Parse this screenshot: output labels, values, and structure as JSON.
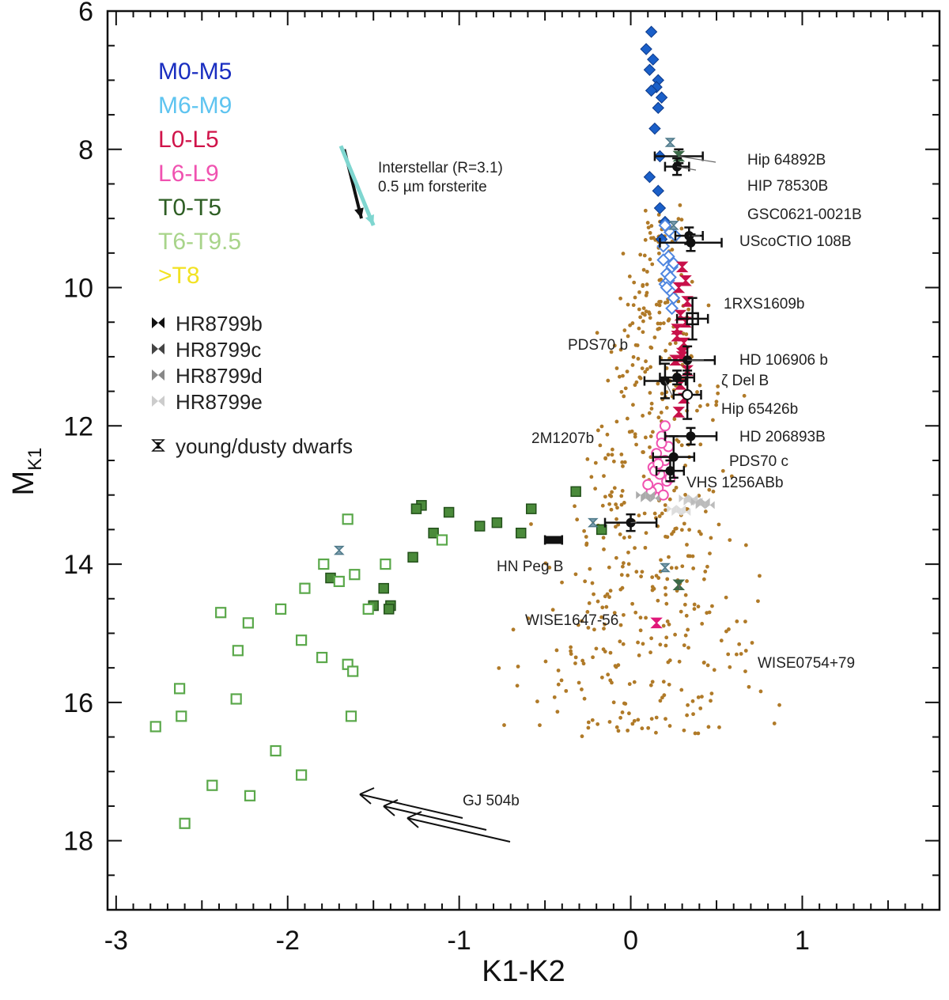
{
  "chart_data": {
    "type": "scatter",
    "xlabel": "K1-K2",
    "ylabel": "M",
    "ylabel_sub": "K1",
    "xlim": [
      -3.05,
      1.8
    ],
    "ylim": [
      19.0,
      6.0
    ],
    "y_inverted": true,
    "x_ticks": [
      -3,
      -2,
      -1,
      0,
      1
    ],
    "y_ticks": [
      6,
      8,
      10,
      12,
      14,
      16,
      18
    ],
    "legend_spectral": [
      {
        "label": "M0-M5",
        "color": "#1a2ec0"
      },
      {
        "label": "M6-M9",
        "color": "#5ec4f0"
      },
      {
        "label": "L0-L5",
        "color": "#d0144a"
      },
      {
        "label": "L6-L9",
        "color": "#f052b0"
      },
      {
        "label": "T0-T5",
        "color": "#2e5e24"
      },
      {
        "label": "T6-T9.5",
        "color": "#a8d48a"
      },
      {
        "label": ">T8",
        "color": "#f2e222"
      }
    ],
    "legend_markers": [
      {
        "label": "HR8799b",
        "color": "#111111"
      },
      {
        "label": "HR8799c",
        "color": "#444444"
      },
      {
        "label": "HR8799d",
        "color": "#888888"
      },
      {
        "label": "HR8799e",
        "color": "#cccccc"
      },
      {
        "label": "young/dusty dwarfs",
        "color": "#111111"
      }
    ],
    "vectors": [
      {
        "label": "Interstellar (R=3.1)",
        "color": "#111111",
        "x0": -1.67,
        "y0": 8.0,
        "x1": -1.57,
        "y1": 9.0
      },
      {
        "label": "0.5 µm forsterite",
        "color": "#7fd6d0",
        "x0": -1.69,
        "y0": 7.95,
        "x1": -1.5,
        "y1": 9.1
      }
    ],
    "series": [
      {
        "name": "M0-M5",
        "marker": "diamond-filled",
        "color": "#1a5fc8",
        "x": [
          0.12,
          0.09,
          0.13,
          0.11,
          0.16,
          0.15,
          0.12,
          0.18,
          0.16,
          0.14,
          0.17,
          0.11,
          0.16,
          0.17,
          0.2,
          0.18
        ],
        "y": [
          6.3,
          6.55,
          6.7,
          6.85,
          7.0,
          7.1,
          7.15,
          7.25,
          7.4,
          7.7,
          8.1,
          8.4,
          8.6,
          8.85,
          9.05,
          9.3
        ]
      },
      {
        "name": "M6-M9",
        "marker": "diamond-open",
        "color": "#4f86e0",
        "x": [
          0.2,
          0.23,
          0.19,
          0.22,
          0.24,
          0.21,
          0.2,
          0.23,
          0.25,
          0.22,
          0.24,
          0.19,
          0.26,
          0.21,
          0.23,
          0.25
        ],
        "y": [
          9.1,
          9.2,
          9.4,
          9.55,
          9.7,
          9.8,
          9.95,
          10.05,
          10.15,
          9.9,
          10.3,
          9.6,
          9.25,
          10.0,
          9.85,
          9.65
        ]
      },
      {
        "name": "L0-L5",
        "marker": "hourglass",
        "color": "#c8104a",
        "x": [
          0.3,
          0.32,
          0.28,
          0.33,
          0.29,
          0.27,
          0.31,
          0.3,
          0.26,
          0.33,
          0.29,
          0.31,
          0.28,
          0.32,
          0.3,
          0.27
        ],
        "y": [
          9.7,
          9.9,
          10.0,
          10.2,
          10.4,
          10.6,
          10.8,
          10.95,
          11.05,
          11.2,
          11.4,
          11.6,
          11.8,
          10.5,
          11.0,
          10.7
        ]
      },
      {
        "name": "L6-L9",
        "marker": "circle-open",
        "color": "#f052b0",
        "x": [
          0.2,
          0.18,
          0.22,
          0.15,
          0.2,
          0.13,
          0.17,
          0.21,
          0.16,
          0.12,
          0.19,
          0.14,
          0.1,
          0.18,
          0.23,
          0.16
        ],
        "y": [
          12.0,
          12.15,
          12.3,
          12.4,
          12.5,
          12.6,
          12.7,
          12.8,
          12.9,
          12.95,
          13.0,
          12.65,
          12.85,
          12.25,
          12.75,
          12.55
        ]
      },
      {
        "name": "T0-T5",
        "marker": "square-filled",
        "color": "#4a8a3a",
        "x": [
          -1.22,
          -1.25,
          -1.06,
          -1.15,
          -0.88,
          -0.78,
          -0.64,
          -0.58,
          -0.32,
          -0.17,
          -1.27,
          -1.75,
          -1.44,
          -1.4,
          -1.41,
          -1.5
        ],
        "y": [
          13.15,
          13.2,
          13.25,
          13.55,
          13.45,
          13.4,
          13.55,
          13.2,
          12.95,
          13.5,
          13.9,
          14.2,
          14.35,
          14.6,
          14.65,
          14.6
        ]
      },
      {
        "name": "T6-T9.5",
        "marker": "square-open",
        "color": "#5aa84a",
        "x": [
          -1.1,
          -1.43,
          -1.65,
          -1.79,
          -1.7,
          -1.61,
          -1.53,
          -1.9,
          -2.04,
          -2.39,
          -2.23,
          -2.29,
          -2.3,
          -1.92,
          -1.8,
          -1.65,
          -1.62,
          -2.63,
          -2.62,
          -2.77,
          -2.44,
          -2.22,
          -2.07,
          -1.92,
          -2.6,
          -1.63
        ],
        "y": [
          13.65,
          14.0,
          13.35,
          14.0,
          14.25,
          14.15,
          14.65,
          14.35,
          14.65,
          14.7,
          14.85,
          15.25,
          15.95,
          15.1,
          15.35,
          15.45,
          15.55,
          15.8,
          16.2,
          16.35,
          17.2,
          17.35,
          16.7,
          17.05,
          17.75,
          16.2
        ]
      },
      {
        "name": ">T8",
        "marker": "square-open",
        "color": "#f2e222",
        "x": [],
        "y": []
      }
    ],
    "objects": [
      {
        "label": "Hip 64892B",
        "x": 0.28,
        "y": 8.1,
        "xerr": 0.14,
        "yerr": 0.1,
        "marker": "hourglass"
      },
      {
        "label": "HIP 78530B",
        "x": 0.27,
        "y": 8.25,
        "xerr": 0.07,
        "yerr": 0.12,
        "marker": "circle"
      },
      {
        "label": "GSC0621-0021B",
        "x": 0.34,
        "y": 9.25,
        "xerr": 0.08,
        "yerr": 0.12,
        "marker": "circle"
      },
      {
        "label": "UScoCTIO 108B",
        "x": 0.35,
        "y": 9.35,
        "xerr": 0.18,
        "yerr": 0.12,
        "marker": "circle"
      },
      {
        "label": "1RXS1609b",
        "x": 0.36,
        "y": 10.45,
        "xerr": 0.09,
        "yerr": 0.3,
        "marker": "square-open"
      },
      {
        "label": "HD 106906 b",
        "x": 0.33,
        "y": 11.05,
        "xerr": 0.16,
        "yerr": 0.2,
        "marker": "circle"
      },
      {
        "label": "PDS70 b",
        "x": 0.2,
        "y": 11.35,
        "xerr": 0.12,
        "yerr": 0.25,
        "marker": "circle"
      },
      {
        "label": "ζ Del B",
        "x": 0.27,
        "y": 11.3,
        "xerr": 0.1,
        "yerr": 0.1,
        "marker": "circle"
      },
      {
        "label": "Hip 65426b",
        "x": 0.33,
        "y": 11.55,
        "xerr": 0.08,
        "yerr": 0.35,
        "marker": "circle-open"
      },
      {
        "label": "HD 206893B",
        "x": 0.35,
        "y": 12.15,
        "xerr": 0.15,
        "yerr": 0.12,
        "marker": "circle"
      },
      {
        "label": "PDS70 c",
        "x": 0.25,
        "y": 12.45,
        "xerr": 0.12,
        "yerr": 0.3,
        "marker": "circle"
      },
      {
        "label": "VHS 1256ABb",
        "x": 0.23,
        "y": 12.65,
        "xerr": 0.08,
        "yerr": 0.15,
        "marker": "circle"
      },
      {
        "label": "2M1207b",
        "x": 0.0,
        "y": 13.4,
        "xerr": 0.15,
        "yerr": 0.12,
        "marker": "circle"
      },
      {
        "label": "HN Peg B",
        "x": -0.45,
        "y": 13.65,
        "xerr": 0.05,
        "yerr": 0.0,
        "marker": "bar"
      },
      {
        "label": "WISE1647-56",
        "x": 0.15,
        "y": 14.85,
        "xerr": 0.0,
        "yerr": 0.0,
        "marker": "hourglass"
      },
      {
        "label": "WISE0754+79",
        "x": 0.28,
        "y": 14.3,
        "xerr": 0.0,
        "yerr": 0.0,
        "marker": "hourglass"
      },
      {
        "label": "GJ 504b",
        "x": -1.6,
        "y": 17.35,
        "xerr": 0.0,
        "yerr": 0.0,
        "marker": "arrow"
      }
    ],
    "young_dusty": [
      {
        "x": 0.23,
        "y": 7.9
      },
      {
        "x": 0.25,
        "y": 9.1
      },
      {
        "x": -1.7,
        "y": 13.8
      },
      {
        "x": -0.22,
        "y": 13.4
      },
      {
        "x": 0.2,
        "y": 14.05
      },
      {
        "x": 0.28,
        "y": 14.3
      }
    ],
    "hr8799": [
      {
        "label": "HR8799b",
        "x": 0.1,
        "y": 13.0,
        "color": "#aaaaaa"
      },
      {
        "label": "HR8799c",
        "x": 0.35,
        "y": 13.05,
        "color": "#cccccc"
      },
      {
        "label": "HR8799d",
        "x": 0.42,
        "y": 13.1,
        "color": "#bbbbbb"
      },
      {
        "label": "HR8799e",
        "x": 0.28,
        "y": 13.2,
        "color": "#dddddd"
      }
    ],
    "field_dots_color": "#b07a28"
  }
}
